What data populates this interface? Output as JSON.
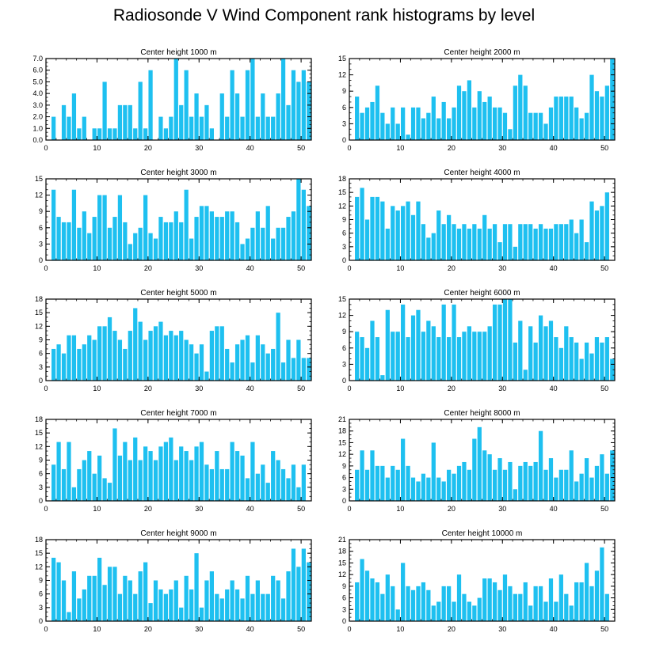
{
  "figure": {
    "title": "Radiosonde V Wind Component rank histograms by level"
  },
  "style": {
    "bar_color": "#1ec0f0",
    "axis_color": "#000000"
  },
  "chart_data": [
    {
      "type": "bar",
      "title": "Center height 1000 m",
      "x": [
        0,
        1,
        2,
        3,
        4,
        5,
        6,
        7,
        8,
        9,
        10,
        11,
        12,
        13,
        14,
        15,
        16,
        17,
        18,
        19,
        20,
        21,
        22,
        23,
        24,
        25,
        26,
        27,
        28,
        29,
        30,
        31,
        32,
        33,
        34,
        35,
        36,
        37,
        38,
        39,
        40,
        41,
        42,
        43,
        44,
        45,
        46,
        47,
        48,
        49,
        50,
        51
      ],
      "values": [
        0,
        2,
        0,
        3,
        2,
        4,
        1,
        2,
        0,
        1,
        1,
        5,
        1,
        1,
        3,
        3,
        3,
        1,
        5,
        1,
        6,
        0,
        2,
        1,
        2,
        7,
        3,
        6,
        2,
        4,
        2,
        3,
        1,
        0,
        4,
        2,
        6,
        4,
        2,
        6,
        7,
        2,
        4,
        2,
        2,
        4,
        7,
        3,
        6,
        5,
        6,
        5
      ],
      "xlim": [
        0,
        52
      ],
      "ylim": [
        0,
        7
      ],
      "xticks": [
        0,
        10,
        20,
        30,
        40,
        50
      ],
      "yticks": [
        0,
        1,
        2,
        3,
        4,
        5,
        6,
        7
      ],
      "ytick_labels": [
        "0.0",
        "1.0",
        "2.0",
        "3.0",
        "4.0",
        "5.0",
        "6.0",
        "7.0"
      ]
    },
    {
      "type": "bar",
      "title": "Center height 2000 m",
      "x": [
        0,
        1,
        2,
        3,
        4,
        5,
        6,
        7,
        8,
        9,
        10,
        11,
        12,
        13,
        14,
        15,
        16,
        17,
        18,
        19,
        20,
        21,
        22,
        23,
        24,
        25,
        26,
        27,
        28,
        29,
        30,
        31,
        32,
        33,
        34,
        35,
        36,
        37,
        38,
        39,
        40,
        41,
        42,
        43,
        44,
        45,
        46,
        47,
        48,
        49,
        50,
        51
      ],
      "values": [
        0,
        8,
        5,
        6,
        7,
        10,
        5,
        3,
        6,
        3,
        6,
        1,
        6,
        6,
        4,
        5,
        8,
        4,
        7,
        4,
        6,
        10,
        9,
        11,
        6,
        9,
        7,
        8,
        6,
        6,
        5,
        2,
        10,
        12,
        10,
        5,
        5,
        5,
        3,
        6,
        8,
        8,
        8,
        8,
        6,
        4,
        5,
        12,
        9,
        8,
        10,
        15
      ],
      "xlim": [
        0,
        52
      ],
      "ylim": [
        0,
        15
      ],
      "xticks": [
        0,
        10,
        20,
        30,
        40,
        50
      ],
      "yticks": [
        0,
        3,
        6,
        9,
        12,
        15
      ],
      "ytick_labels": [
        "0",
        "3",
        "6",
        "9",
        "12",
        "15"
      ]
    },
    {
      "type": "bar",
      "title": "Center height 3000 m",
      "x": [
        0,
        1,
        2,
        3,
        4,
        5,
        6,
        7,
        8,
        9,
        10,
        11,
        12,
        13,
        14,
        15,
        16,
        17,
        18,
        19,
        20,
        21,
        22,
        23,
        24,
        25,
        26,
        27,
        28,
        29,
        30,
        31,
        32,
        33,
        34,
        35,
        36,
        37,
        38,
        39,
        40,
        41,
        42,
        43,
        44,
        45,
        46,
        47,
        48,
        49,
        50,
        51
      ],
      "values": [
        0,
        13,
        8,
        7,
        7,
        13,
        6,
        9,
        5,
        8,
        12,
        12,
        6,
        8,
        12,
        7,
        3,
        5,
        6,
        12,
        5,
        4,
        8,
        7,
        7,
        9,
        7,
        13,
        4,
        8,
        10,
        10,
        9,
        8,
        8,
        9,
        9,
        7,
        3,
        4,
        6,
        9,
        6,
        10,
        4,
        6,
        6,
        8,
        9,
        15,
        13,
        10
      ],
      "xlim": [
        0,
        52
      ],
      "ylim": [
        0,
        15
      ],
      "xticks": [
        0,
        10,
        20,
        30,
        40,
        50
      ],
      "yticks": [
        0,
        3,
        6,
        9,
        12,
        15
      ],
      "ytick_labels": [
        "0",
        "3",
        "6",
        "9",
        "12",
        "15"
      ]
    },
    {
      "type": "bar",
      "title": "Center height 4000 m",
      "x": [
        0,
        1,
        2,
        3,
        4,
        5,
        6,
        7,
        8,
        9,
        10,
        11,
        12,
        13,
        14,
        15,
        16,
        17,
        18,
        19,
        20,
        21,
        22,
        23,
        24,
        25,
        26,
        27,
        28,
        29,
        30,
        31,
        32,
        33,
        34,
        35,
        36,
        37,
        38,
        39,
        40,
        41,
        42,
        43,
        44,
        45,
        46,
        47,
        48,
        49,
        50,
        51
      ],
      "values": [
        0,
        14,
        16,
        9,
        14,
        14,
        13,
        7,
        12,
        11,
        12,
        13,
        10,
        13,
        8,
        5,
        6,
        11,
        8,
        10,
        8,
        7,
        8,
        7,
        8,
        7,
        10,
        7,
        8,
        4,
        8,
        8,
        3,
        8,
        8,
        8,
        7,
        8,
        7,
        7,
        8,
        8,
        8,
        9,
        6,
        9,
        4,
        13,
        11,
        12,
        15,
        0
      ],
      "xlim": [
        0,
        52
      ],
      "ylim": [
        0,
        18
      ],
      "xticks": [
        0,
        10,
        20,
        30,
        40,
        50
      ],
      "yticks": [
        0,
        3,
        6,
        9,
        12,
        15,
        18
      ],
      "ytick_labels": [
        "0",
        "3",
        "6",
        "9",
        "12",
        "15",
        "18"
      ]
    },
    {
      "type": "bar",
      "title": "Center height 5000 m",
      "x": [
        0,
        1,
        2,
        3,
        4,
        5,
        6,
        7,
        8,
        9,
        10,
        11,
        12,
        13,
        14,
        15,
        16,
        17,
        18,
        19,
        20,
        21,
        22,
        23,
        24,
        25,
        26,
        27,
        28,
        29,
        30,
        31,
        32,
        33,
        34,
        35,
        36,
        37,
        38,
        39,
        40,
        41,
        42,
        43,
        44,
        45,
        46,
        47,
        48,
        49,
        50,
        51
      ],
      "values": [
        0,
        7,
        8,
        6,
        10,
        10,
        7,
        8,
        10,
        9,
        12,
        12,
        14,
        11,
        9,
        7,
        11,
        16,
        13,
        9,
        11,
        12,
        13,
        10,
        11,
        10,
        11,
        9,
        8,
        6,
        8,
        2,
        11,
        12,
        12,
        7,
        4,
        8,
        9,
        10,
        4,
        10,
        8,
        6,
        7,
        15,
        4,
        9,
        5,
        9,
        5,
        5
      ],
      "xlim": [
        0,
        52
      ],
      "ylim": [
        0,
        18
      ],
      "xticks": [
        0,
        10,
        20,
        30,
        40,
        50
      ],
      "yticks": [
        0,
        3,
        6,
        9,
        12,
        15,
        18
      ],
      "ytick_labels": [
        "0",
        "3",
        "6",
        "9",
        "12",
        "15",
        "18"
      ]
    },
    {
      "type": "bar",
      "title": "Center height 6000 m",
      "x": [
        0,
        1,
        2,
        3,
        4,
        5,
        6,
        7,
        8,
        9,
        10,
        11,
        12,
        13,
        14,
        15,
        16,
        17,
        18,
        19,
        20,
        21,
        22,
        23,
        24,
        25,
        26,
        27,
        28,
        29,
        30,
        31,
        32,
        33,
        34,
        35,
        36,
        37,
        38,
        39,
        40,
        41,
        42,
        43,
        44,
        45,
        46,
        47,
        48,
        49,
        50,
        51
      ],
      "values": [
        0,
        9,
        8,
        6,
        11,
        8,
        1,
        13,
        9,
        9,
        14,
        8,
        12,
        13,
        9,
        11,
        10,
        8,
        14,
        8,
        14,
        8,
        9,
        10,
        9,
        9,
        9,
        10,
        14,
        14,
        15,
        15,
        7,
        11,
        2,
        10,
        7,
        12,
        10,
        11,
        8,
        6,
        10,
        8,
        7,
        4,
        7,
        5,
        8,
        7,
        8,
        4
      ],
      "xlim": [
        0,
        52
      ],
      "ylim": [
        0,
        15
      ],
      "xticks": [
        0,
        10,
        20,
        30,
        40,
        50
      ],
      "yticks": [
        0,
        3,
        6,
        9,
        12,
        15
      ],
      "ytick_labels": [
        "0",
        "3",
        "6",
        "9",
        "12",
        "15"
      ]
    },
    {
      "type": "bar",
      "title": "Center height 7000 m",
      "x": [
        0,
        1,
        2,
        3,
        4,
        5,
        6,
        7,
        8,
        9,
        10,
        11,
        12,
        13,
        14,
        15,
        16,
        17,
        18,
        19,
        20,
        21,
        22,
        23,
        24,
        25,
        26,
        27,
        28,
        29,
        30,
        31,
        32,
        33,
        34,
        35,
        36,
        37,
        38,
        39,
        40,
        41,
        42,
        43,
        44,
        45,
        46,
        47,
        48,
        49,
        50,
        51
      ],
      "values": [
        0,
        8,
        13,
        7,
        13,
        3,
        7,
        9,
        11,
        6,
        10,
        5,
        4,
        16,
        10,
        13,
        9,
        14,
        9,
        12,
        11,
        9,
        12,
        13,
        14,
        9,
        12,
        11,
        9,
        12,
        13,
        8,
        7,
        11,
        7,
        7,
        13,
        11,
        10,
        5,
        13,
        6,
        8,
        4,
        11,
        9,
        7,
        5,
        8,
        3,
        8,
        0
      ],
      "xlim": [
        0,
        52
      ],
      "ylim": [
        0,
        18
      ],
      "xticks": [
        0,
        10,
        20,
        30,
        40,
        50
      ],
      "yticks": [
        0,
        3,
        6,
        9,
        12,
        15,
        18
      ],
      "ytick_labels": [
        "0",
        "3",
        "6",
        "9",
        "12",
        "15",
        "18"
      ]
    },
    {
      "type": "bar",
      "title": "Center height 8000 m",
      "x": [
        0,
        1,
        2,
        3,
        4,
        5,
        6,
        7,
        8,
        9,
        10,
        11,
        12,
        13,
        14,
        15,
        16,
        17,
        18,
        19,
        20,
        21,
        22,
        23,
        24,
        25,
        26,
        27,
        28,
        29,
        30,
        31,
        32,
        33,
        34,
        35,
        36,
        37,
        38,
        39,
        40,
        41,
        42,
        43,
        44,
        45,
        46,
        47,
        48,
        49,
        50,
        51
      ],
      "values": [
        0,
        8,
        13,
        8,
        13,
        9,
        9,
        6,
        9,
        8,
        16,
        9,
        6,
        5,
        7,
        6,
        15,
        6,
        5,
        8,
        7,
        9,
        10,
        8,
        16,
        19,
        13,
        12,
        8,
        11,
        8,
        10,
        3,
        9,
        10,
        9,
        10,
        18,
        8,
        11,
        6,
        8,
        8,
        13,
        5,
        7,
        11,
        6,
        9,
        12,
        7,
        13
      ],
      "xlim": [
        0,
        52
      ],
      "ylim": [
        0,
        21
      ],
      "xticks": [
        0,
        10,
        20,
        30,
        40,
        50
      ],
      "yticks": [
        0,
        3,
        6,
        9,
        12,
        15,
        18,
        21
      ],
      "ytick_labels": [
        "0",
        "3",
        "6",
        "9",
        "12",
        "15",
        "18",
        "21"
      ]
    },
    {
      "type": "bar",
      "title": "Center height 9000 m",
      "x": [
        0,
        1,
        2,
        3,
        4,
        5,
        6,
        7,
        8,
        9,
        10,
        11,
        12,
        13,
        14,
        15,
        16,
        17,
        18,
        19,
        20,
        21,
        22,
        23,
        24,
        25,
        26,
        27,
        28,
        29,
        30,
        31,
        32,
        33,
        34,
        35,
        36,
        37,
        38,
        39,
        40,
        41,
        42,
        43,
        44,
        45,
        46,
        47,
        48,
        49,
        50,
        51
      ],
      "values": [
        0,
        14,
        13,
        9,
        2,
        11,
        5,
        7,
        10,
        10,
        14,
        8,
        12,
        12,
        6,
        10,
        9,
        6,
        11,
        13,
        4,
        9,
        7,
        6,
        7,
        9,
        3,
        10,
        7,
        15,
        3,
        9,
        11,
        6,
        5,
        7,
        9,
        7,
        5,
        10,
        6,
        9,
        6,
        6,
        10,
        9,
        5,
        11,
        16,
        12,
        16,
        13
      ],
      "xlim": [
        0,
        52
      ],
      "ylim": [
        0,
        18
      ],
      "xticks": [
        0,
        10,
        20,
        30,
        40,
        50
      ],
      "yticks": [
        0,
        3,
        6,
        9,
        12,
        15,
        18
      ],
      "ytick_labels": [
        "0",
        "3",
        "6",
        "9",
        "12",
        "15",
        "18"
      ]
    },
    {
      "type": "bar",
      "title": "Center height 10000 m",
      "x": [
        0,
        1,
        2,
        3,
        4,
        5,
        6,
        7,
        8,
        9,
        10,
        11,
        12,
        13,
        14,
        15,
        16,
        17,
        18,
        19,
        20,
        21,
        22,
        23,
        24,
        25,
        26,
        27,
        28,
        29,
        30,
        31,
        32,
        33,
        34,
        35,
        36,
        37,
        38,
        39,
        40,
        41,
        42,
        43,
        44,
        45,
        46,
        47,
        48,
        49,
        50,
        51
      ],
      "values": [
        0,
        10,
        16,
        13,
        11,
        10,
        7,
        12,
        9,
        3,
        15,
        9,
        8,
        9,
        10,
        8,
        4,
        5,
        9,
        9,
        5,
        12,
        7,
        5,
        4,
        6,
        11,
        11,
        10,
        8,
        12,
        9,
        7,
        7,
        10,
        4,
        9,
        9,
        5,
        11,
        5,
        12,
        7,
        4,
        10,
        10,
        15,
        9,
        13,
        19,
        7,
        0
      ],
      "xlim": [
        0,
        52
      ],
      "ylim": [
        0,
        21
      ],
      "xticks": [
        0,
        10,
        20,
        30,
        40,
        50
      ],
      "yticks": [
        0,
        3,
        6,
        9,
        12,
        15,
        18,
        21
      ],
      "ytick_labels": [
        "0",
        "3",
        "6",
        "9",
        "12",
        "15",
        "18",
        "21"
      ]
    }
  ]
}
